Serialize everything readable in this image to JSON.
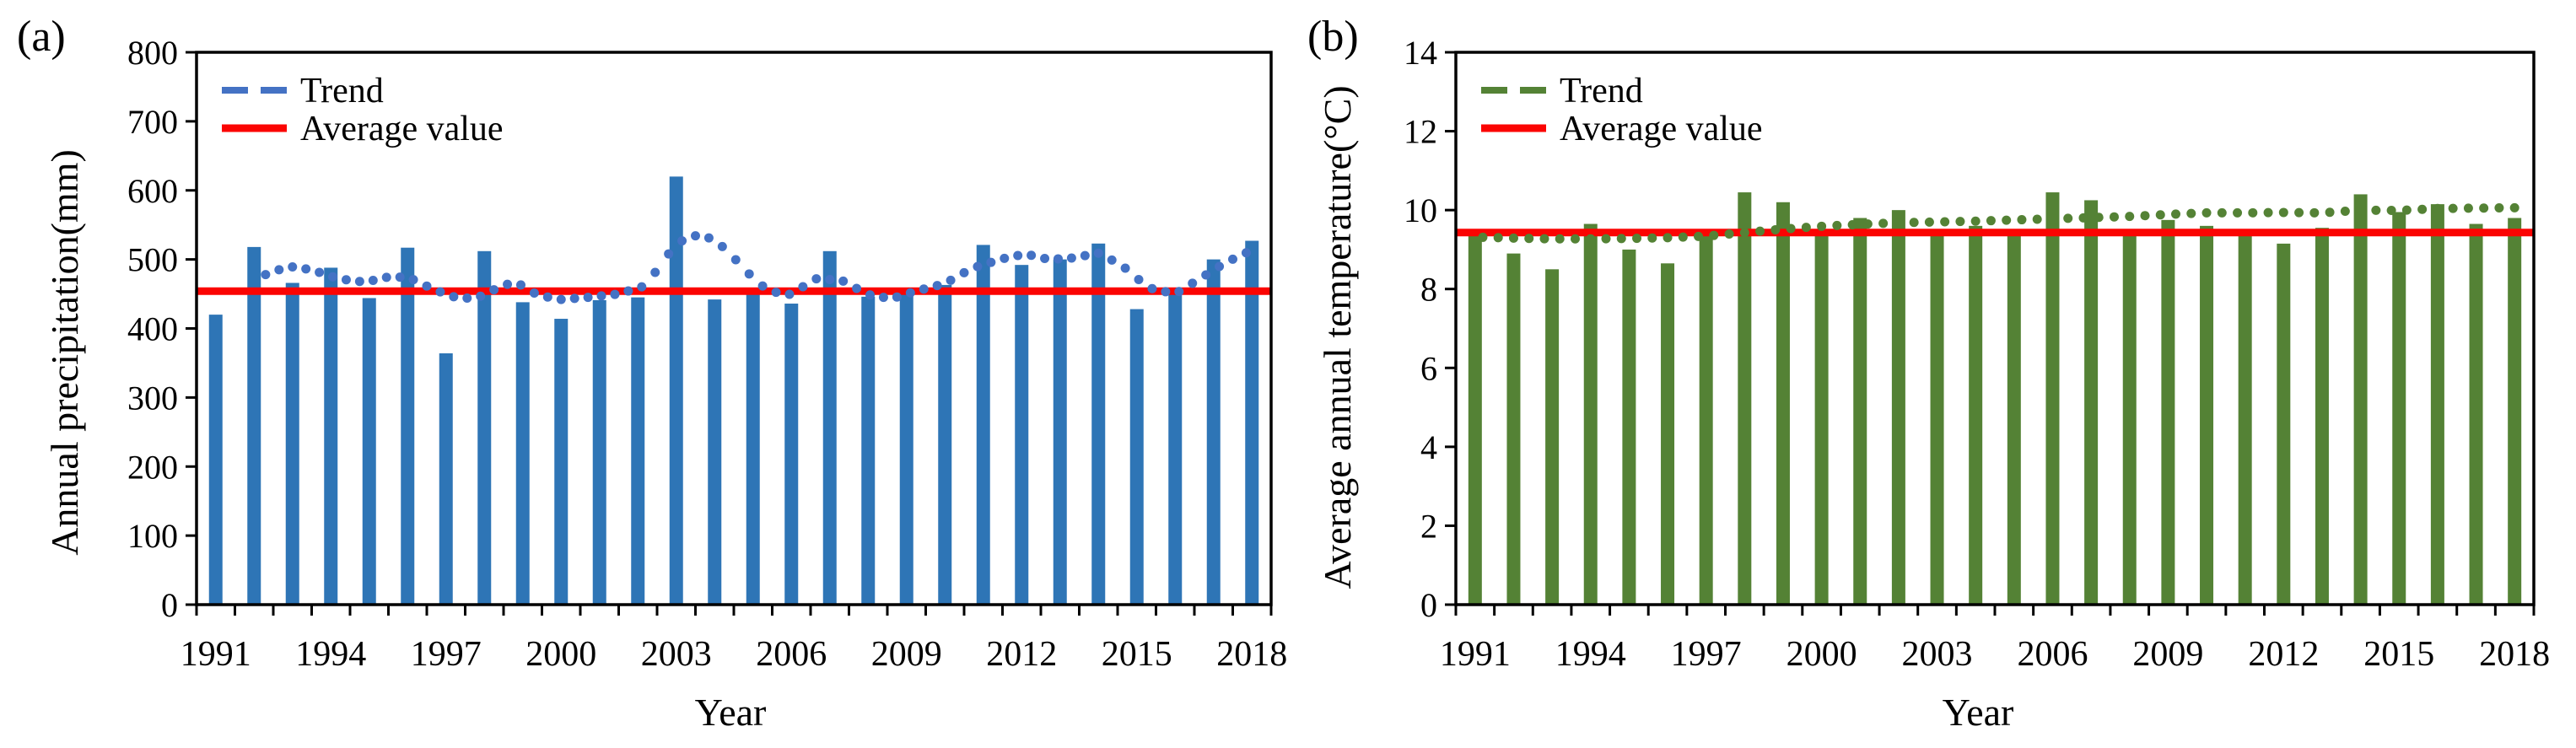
{
  "figure": {
    "panels": [
      {
        "label": "(a)",
        "y_axis_title": "Annual precipitation(mm)",
        "x_axis_title": "Year",
        "legend": [
          {
            "label": "Trend",
            "style": "dashed"
          },
          {
            "label": "Average value",
            "style": "solid"
          }
        ]
      },
      {
        "label": "(b)",
        "y_axis_title": "Average annual temperature(°C)",
        "x_axis_title": "Year",
        "legend": [
          {
            "label": "Trend",
            "style": "dashed"
          },
          {
            "label": "Average value",
            "style": "solid"
          }
        ]
      }
    ]
  },
  "chart_data": [
    {
      "type": "bar",
      "title": "",
      "xlabel": "Year",
      "ylabel": "Annual precipitation(mm)",
      "ylim": [
        0,
        800
      ],
      "yticks": [
        0,
        100,
        200,
        300,
        400,
        500,
        600,
        700,
        800
      ],
      "ytick_labels": [
        "0",
        "100",
        "200",
        "300",
        "400",
        "500",
        "600",
        "700",
        "800"
      ],
      "categories": [
        1991,
        1992,
        1993,
        1994,
        1995,
        1996,
        1997,
        1998,
        1999,
        2000,
        2001,
        2002,
        2003,
        2004,
        2005,
        2006,
        2007,
        2008,
        2009,
        2010,
        2011,
        2012,
        2013,
        2014,
        2015,
        2016,
        2017,
        2018
      ],
      "xtick_labels": [
        "1991",
        "1994",
        "1997",
        "2000",
        "2003",
        "2006",
        "2009",
        "2012",
        "2015",
        "2018"
      ],
      "values": [
        420,
        518,
        466,
        488,
        444,
        517,
        364,
        512,
        438,
        414,
        441,
        445,
        620,
        442,
        452,
        436,
        512,
        446,
        450,
        463,
        521,
        492,
        500,
        523,
        428,
        456,
        500,
        527
      ],
      "average_value": 454,
      "trend_points": [
        [
          1992.3,
          478
        ],
        [
          1992.9,
          490
        ],
        [
          1993.5,
          485
        ],
        [
          1994.2,
          472
        ],
        [
          1994.9,
          467
        ],
        [
          1995.6,
          476
        ],
        [
          1996.1,
          472
        ],
        [
          1996.7,
          456
        ],
        [
          1997.3,
          444
        ],
        [
          1997.8,
          444
        ],
        [
          1998.4,
          460
        ],
        [
          1998.8,
          468
        ],
        [
          1999.4,
          448
        ],
        [
          2000.0,
          442
        ],
        [
          2000.7,
          445
        ],
        [
          2001.5,
          450
        ],
        [
          2002.2,
          462
        ],
        [
          2002.8,
          508
        ],
        [
          2003.3,
          535
        ],
        [
          2003.8,
          533
        ],
        [
          2004.3,
          515
        ],
        [
          2004.8,
          484
        ],
        [
          2005.4,
          454
        ],
        [
          2006.0,
          449
        ],
        [
          2006.6,
          472
        ],
        [
          2007.3,
          470
        ],
        [
          2008.0,
          449
        ],
        [
          2008.6,
          443
        ],
        [
          2009.3,
          455
        ],
        [
          2010.0,
          465
        ],
        [
          2010.7,
          487
        ],
        [
          2011.5,
          501
        ],
        [
          2012.1,
          508
        ],
        [
          2012.7,
          500
        ],
        [
          2013.3,
          502
        ],
        [
          2014.0,
          509
        ],
        [
          2014.6,
          492
        ],
        [
          2015.3,
          459
        ],
        [
          2016.0,
          450
        ],
        [
          2016.7,
          474
        ],
        [
          2017.3,
          495
        ],
        [
          2017.9,
          511
        ]
      ],
      "bar_color": "#2E75B6",
      "trend_color": "#4472C4",
      "average_color": "#FB0402",
      "legend_entries": [
        "Trend",
        "Average value"
      ],
      "legend_position": "upper-left-inside",
      "grid": false
    },
    {
      "type": "bar",
      "title": "",
      "xlabel": "Year",
      "ylabel": "Average annual temperature(°C)",
      "ylim": [
        0,
        14
      ],
      "yticks": [
        0,
        2,
        4,
        6,
        8,
        10,
        12,
        14
      ],
      "ytick_labels": [
        "0",
        "2",
        "4",
        "6",
        "8",
        "10",
        "12",
        "14"
      ],
      "categories": [
        1991,
        1992,
        1993,
        1994,
        1995,
        1996,
        1997,
        1998,
        1999,
        2000,
        2001,
        2002,
        2003,
        2004,
        2005,
        2006,
        2007,
        2008,
        2009,
        2010,
        2011,
        2012,
        2013,
        2014,
        2015,
        2016,
        2017,
        2018
      ],
      "xtick_labels": [
        "1991",
        "1994",
        "1997",
        "2000",
        "2003",
        "2006",
        "2009",
        "2012",
        "2015",
        "2018"
      ],
      "values": [
        9.4,
        8.9,
        8.5,
        9.65,
        9.0,
        8.65,
        9.45,
        10.45,
        10.2,
        9.5,
        9.8,
        10.0,
        9.45,
        9.6,
        9.45,
        10.45,
        10.25,
        9.4,
        9.75,
        9.6,
        9.35,
        9.15,
        9.55,
        10.4,
        9.95,
        10.15,
        9.65,
        9.8
      ],
      "average_value": 9.43,
      "trend_points": [
        [
          1991.2,
          9.31
        ],
        [
          1992,
          9.29
        ],
        [
          1993,
          9.27
        ],
        [
          1994,
          9.27
        ],
        [
          1995,
          9.28
        ],
        [
          1996,
          9.3
        ],
        [
          1997,
          9.34
        ],
        [
          1998,
          9.43
        ],
        [
          1999,
          9.52
        ],
        [
          2000,
          9.59
        ],
        [
          2001,
          9.64
        ],
        [
          2002,
          9.68
        ],
        [
          2003,
          9.7
        ],
        [
          2004,
          9.72
        ],
        [
          2005,
          9.75
        ],
        [
          2006,
          9.78
        ],
        [
          2007,
          9.81
        ],
        [
          2008,
          9.84
        ],
        [
          2009,
          9.89
        ],
        [
          2010,
          9.93
        ],
        [
          2011,
          9.93
        ],
        [
          2012,
          9.94
        ],
        [
          2013,
          9.93
        ],
        [
          2014,
          10.0
        ],
        [
          2015,
          9.99
        ],
        [
          2016,
          10.04
        ],
        [
          2017,
          10.05
        ],
        [
          2018,
          10.06
        ]
      ],
      "bar_color": "#548235",
      "trend_color": "#548235",
      "average_color": "#FB0402",
      "legend_entries": [
        "Trend",
        "Average value"
      ],
      "legend_position": "upper-left-inside",
      "grid": false
    }
  ]
}
